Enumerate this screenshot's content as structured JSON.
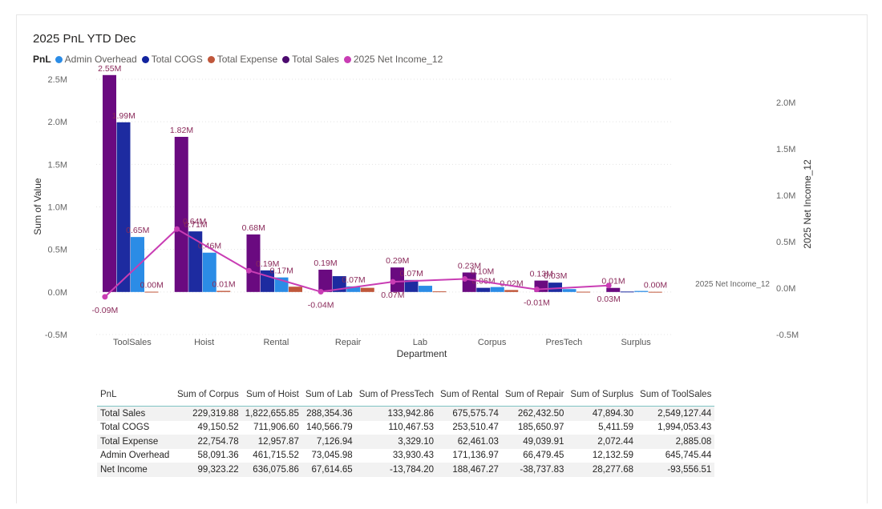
{
  "title": "2025 PnL YTD Dec",
  "legend": {
    "title": "PnL",
    "items": [
      {
        "label": "Admin Overhead",
        "color": "#2b8ce6"
      },
      {
        "label": "Total COGS",
        "color": "#12239e"
      },
      {
        "label": "Total Expense",
        "color": "#c0573b"
      },
      {
        "label": "Total Sales",
        "color": "#4b0a6e"
      },
      {
        "label": "2025 Net Income_12",
        "color": "#c93db4"
      }
    ]
  },
  "chart_data": {
    "type": "bar",
    "xlabel": "Department",
    "ylabel": "Sum of Value",
    "y2label": "2025 Net Income_12",
    "ylim": [
      -0.5,
      2.5
    ],
    "y2lim": [
      -0.5,
      2.0
    ],
    "y_ticks": [
      "2.5M",
      "2.0M",
      "1.5M",
      "1.0M",
      "0.5M",
      "0.0M",
      "-0.5M"
    ],
    "y2_ticks": [
      "2.0M",
      "1.5M",
      "1.0M",
      "0.5M",
      "0.0M",
      "-0.5M"
    ],
    "categories": [
      "ToolSales",
      "Hoist",
      "Rental",
      "Repair",
      "Lab",
      "Corpus",
      "PresTech",
      "Surplus"
    ],
    "series": [
      {
        "name": "Total Sales",
        "color": "#6a0a80",
        "values": [
          2.549,
          1.823,
          0.676,
          0.262,
          0.288,
          0.229,
          0.134,
          0.048
        ]
      },
      {
        "name": "Total COGS",
        "color": "#1d2ba0",
        "values": [
          1.994,
          0.712,
          0.254,
          0.186,
          0.141,
          0.049,
          0.11,
          0.005
        ]
      },
      {
        "name": "Admin Overhead",
        "color": "#2b8ce6",
        "values": [
          0.646,
          0.462,
          0.171,
          0.066,
          0.073,
          0.058,
          0.034,
          0.012
        ]
      },
      {
        "name": "Total Expense",
        "color": "#c0573b",
        "values": [
          0.003,
          0.013,
          0.062,
          0.049,
          0.007,
          0.023,
          0.003,
          0.002
        ]
      }
    ],
    "line": {
      "name": "2025 Net Income_12",
      "color": "#c93db4",
      "values": [
        -0.094,
        0.636,
        0.188,
        -0.039,
        0.068,
        0.099,
        -0.014,
        0.028
      ]
    },
    "bar_labels": [
      [
        "2.55M",
        "1.99M",
        "0.65M",
        "0.00M"
      ],
      [
        "1.82M",
        "0.71M",
        "0.46M",
        "0.01M"
      ],
      [
        "0.68M",
        "0.19M",
        "0.17M",
        ""
      ],
      [
        "0.19M",
        "",
        "0.07M",
        ""
      ],
      [
        "0.29M",
        "0.07M",
        "",
        ""
      ],
      [
        "0.23M",
        "0.06M",
        "",
        "0.02M"
      ],
      [
        "0.13M",
        "0.03M",
        "",
        ""
      ],
      [
        "0.01M",
        "",
        "",
        "0.00M"
      ]
    ],
    "line_labels": [
      "-0.09M",
      "0.64M",
      "",
      "-0.04M",
      "0.07M",
      "0.10M",
      "-0.01M",
      "0.03M"
    ],
    "line_end_label": "2025 Net Income_12"
  },
  "table": {
    "headers": [
      "PnL",
      "Sum of Corpus",
      "Sum of Hoist",
      "Sum of Lab",
      "Sum of PressTech",
      "Sum of Rental",
      "Sum of Repair",
      "Sum of Surplus",
      "Sum of ToolSales"
    ],
    "rows": [
      [
        "Total Sales",
        "229,319.88",
        "1,822,655.85",
        "288,354.36",
        "133,942.86",
        "675,575.74",
        "262,432.50",
        "47,894.30",
        "2,549,127.44"
      ],
      [
        "Total COGS",
        "49,150.52",
        "711,906.60",
        "140,566.79",
        "110,467.53",
        "253,510.47",
        "185,650.97",
        "5,411.59",
        "1,994,053.43"
      ],
      [
        "Total Expense",
        "22,754.78",
        "12,957.87",
        "7,126.94",
        "3,329.10",
        "62,461.03",
        "49,039.91",
        "2,072.44",
        "2,885.08"
      ],
      [
        "Admin Overhead",
        "58,091.36",
        "461,715.52",
        "73,045.98",
        "33,930.43",
        "171,136.97",
        "66,479.45",
        "12,132.59",
        "645,745.44"
      ],
      [
        "Net Income",
        "99,323.22",
        "636,075.86",
        "67,614.65",
        "-13,784.20",
        "188,467.27",
        "-38,737.83",
        "28,277.68",
        "-93,556.51"
      ]
    ]
  }
}
